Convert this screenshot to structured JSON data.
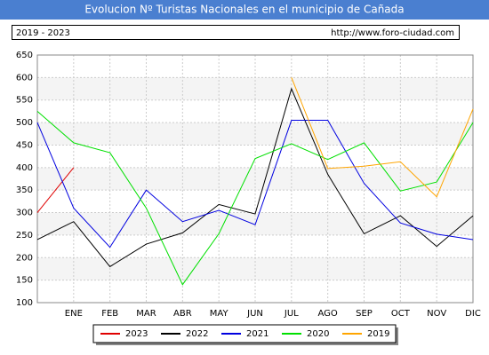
{
  "chart_data": {
    "type": "line",
    "title": "Evolucion Nº Turistas Nacionales en el municipio de Cañada",
    "subtitle": "2019 - 2023",
    "url": "http://www.foro-ciudad.com",
    "categories": [
      null,
      "ENE",
      "FEB",
      "MAR",
      "ABR",
      "MAY",
      "JUN",
      "JUL",
      "AGO",
      "SEP",
      "OCT",
      "NOV",
      "DIC"
    ],
    "series": [
      {
        "name": "2023",
        "color": "#e00000",
        "values": [
          300,
          400,
          null,
          null,
          null,
          null,
          null,
          null,
          null,
          null,
          null,
          null,
          null
        ]
      },
      {
        "name": "2022",
        "color": "#000000",
        "values": [
          240,
          280,
          180,
          230,
          255,
          318,
          297,
          575,
          385,
          253,
          293,
          225,
          293
        ]
      },
      {
        "name": "2021",
        "color": "#0000e0",
        "values": [
          500,
          310,
          223,
          350,
          280,
          305,
          273,
          505,
          505,
          365,
          277,
          252,
          240
        ]
      },
      {
        "name": "2020",
        "color": "#00e000",
        "values": [
          525,
          455,
          433,
          310,
          140,
          253,
          420,
          453,
          418,
          455,
          348,
          368,
          500
        ]
      },
      {
        "name": "2019",
        "color": "#ffa500",
        "values": [
          null,
          null,
          null,
          null,
          null,
          null,
          null,
          600,
          398,
          403,
          413,
          335,
          530
        ]
      }
    ],
    "ylim": [
      100,
      650
    ],
    "yticks": [
      100,
      150,
      200,
      250,
      300,
      350,
      400,
      450,
      500,
      550,
      600,
      650
    ],
    "grid": true,
    "legend": "bottom"
  }
}
